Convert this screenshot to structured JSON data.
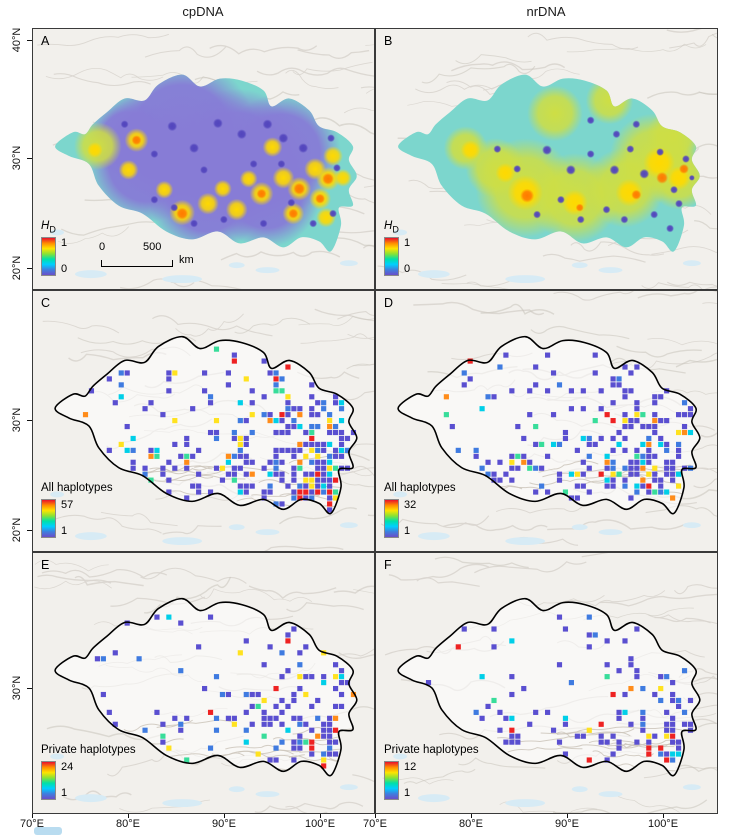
{
  "figure": {
    "columns": [
      {
        "label": "cpDNA"
      },
      {
        "label": "nrDNA"
      }
    ],
    "panels": [
      {
        "letter": "A",
        "kind": "surface",
        "column": "cpDNA",
        "legend": {
          "title_main": "H",
          "title_sub": "D",
          "max": "1",
          "min": "0"
        },
        "scalebar": {
          "start": "0",
          "end": "500",
          "unit": "km"
        }
      },
      {
        "letter": "B",
        "kind": "surface",
        "column": "nrDNA",
        "legend": {
          "title_main": "H",
          "title_sub": "D",
          "max": "1",
          "min": "0"
        }
      },
      {
        "letter": "C",
        "kind": "grid",
        "column": "cpDNA",
        "legend": {
          "title_main": "All haplotypes",
          "max": "57",
          "min": "1"
        }
      },
      {
        "letter": "D",
        "kind": "grid",
        "column": "nrDNA",
        "legend": {
          "title_main": "All haplotypes",
          "max": "32",
          "min": "1"
        }
      },
      {
        "letter": "E",
        "kind": "grid",
        "column": "cpDNA",
        "legend": {
          "title_main": "Private haplotypes",
          "max": "24",
          "min": "1"
        }
      },
      {
        "letter": "F",
        "kind": "grid",
        "column": "nrDNA",
        "legend": {
          "title_main": "Private haplotypes",
          "max": "12",
          "min": "1"
        }
      }
    ],
    "axes": {
      "y_labels": [
        "40°N",
        "30°N",
        "20°N",
        "30°N",
        "20°N",
        "30°N"
      ],
      "x_labels": [
        "70°E",
        "80°E",
        "90°E",
        "100°E",
        "70°E",
        "80°E",
        "90°E",
        "100°E"
      ]
    }
  },
  "colors": {
    "rainbow": [
      "#e8112d",
      "#ff8c00",
      "#ffe400",
      "#8ae234",
      "#00e0a8",
      "#00cfff",
      "#3f7fde",
      "#6a4fc9"
    ],
    "square_palette": [
      "#5a4fd0",
      "#3f7be0",
      "#00cfe8",
      "#38dd9a",
      "#ffe21f",
      "#ff8c1a",
      "#ee2222"
    ],
    "surface_base": "#7cd6cd",
    "outline": "#000000"
  },
  "chart_data": [
    {
      "panel": "A",
      "column": "cpDNA",
      "type": "heatmap",
      "variable": "HD (haplotype diversity)",
      "legend": {
        "max": 1,
        "min": 0
      },
      "scale_bar_km": [
        0,
        500
      ]
    },
    {
      "panel": "B",
      "column": "nrDNA",
      "type": "heatmap",
      "variable": "HD (haplotype diversity)",
      "legend": {
        "max": 1,
        "min": 0
      }
    },
    {
      "panel": "C",
      "column": "cpDNA",
      "type": "heatmap",
      "variable": "All haplotypes",
      "legend": {
        "max": 57,
        "min": 1
      }
    },
    {
      "panel": "D",
      "column": "nrDNA",
      "type": "heatmap",
      "variable": "All haplotypes",
      "legend": {
        "max": 32,
        "min": 1
      }
    },
    {
      "panel": "E",
      "column": "cpDNA",
      "type": "heatmap",
      "variable": "Private haplotypes",
      "legend": {
        "max": 24,
        "min": 1
      }
    },
    {
      "panel": "F",
      "column": "nrDNA",
      "type": "heatmap",
      "variable": "Private haplotypes",
      "legend": {
        "max": 12,
        "min": 1
      }
    },
    {
      "axes": {
        "x_ticks": [
          "70°E",
          "80°E",
          "90°E",
          "100°E"
        ],
        "y_ticks": [
          "40°N",
          "30°N",
          "20°N"
        ]
      }
    }
  ]
}
